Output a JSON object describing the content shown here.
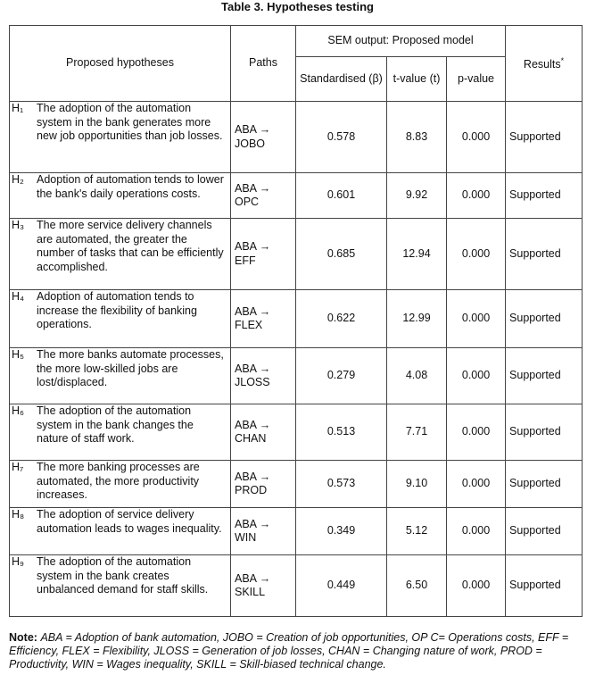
{
  "title": "Table 3. Hypotheses testing",
  "table": {
    "headers": {
      "hypotheses": "Proposed hypotheses",
      "paths": "Paths",
      "sem": "SEM output: Proposed model",
      "standardised": "Standardised (β)",
      "tvalue": "t-value (t)",
      "pvalue": "p-value",
      "results": "Results",
      "results_mark": "*"
    },
    "rows": [
      [
        "H₁",
        "The adoption of the automation system in the bank generates more new job opportunities than job losses.",
        "ABA → JOBO",
        "0.578",
        "8.83",
        "0.000",
        "Supported"
      ],
      [
        "H₂",
        "Adoption of automation tends to lower the bank's daily operations costs.",
        "ABA → OPC",
        "0.601",
        "9.92",
        "0.000",
        "Supported"
      ],
      [
        "H₃",
        "The more service delivery channels are automated, the greater the number of tasks that can be efficiently accomplished.",
        "ABA → EFF",
        "0.685",
        "12.94",
        "0.000",
        "Supported"
      ],
      [
        "H₄",
        "Adoption of automation tends to increase the flexibility of banking operations.",
        "ABA → FLEX",
        "0.622",
        "12.99",
        "0.000",
        "Supported"
      ],
      [
        "H₅",
        "The more banks automate processes, the more low-skilled jobs are lost/displaced.",
        "ABA → JLOSS",
        "0.279",
        "4.08",
        "0.000",
        "Supported"
      ],
      [
        "H₆",
        "The adoption of the automation system in the bank changes the nature of staff work.",
        "ABA → CHAN",
        "0.513",
        "7.71",
        "0.000",
        "Supported"
      ],
      [
        "H₇",
        "The more banking processes are automated, the more productivity increases.",
        "ABA → PROD",
        "0.573",
        "9.10",
        "0.000",
        "Supported"
      ],
      [
        "H₈",
        "The adoption of service delivery automation leads to wages inequality.",
        "ABA → WIN",
        "0.349",
        "5.12",
        "0.000",
        "Supported"
      ],
      [
        "H₉",
        "The adoption of the automation system in the bank creates unbalanced demand for staff skills.",
        "ABA → SKILL",
        "0.449",
        "6.50",
        "0.000",
        "Supported"
      ]
    ]
  },
  "note": {
    "label": "Note:",
    "text": "ABA = Adoption of bank automation, JOBO = Creation of job opportunities, OP C= Operations costs, EFF = Efficiency, FLEX = Flexibility, JLOSS = Generation of job losses, CHAN = Changing nature of work, PROD = Productivity, WIN = Wages inequality, SKILL = Skill-biased technical change."
  }
}
